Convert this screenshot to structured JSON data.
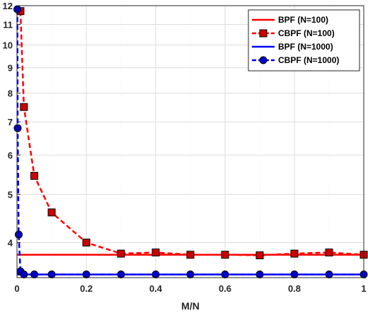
{
  "chart_data": {
    "type": "line",
    "title": "",
    "xlabel": "M/N",
    "ylabel": "",
    "xlim": [
      0,
      1
    ],
    "ylim": [
      3.4,
      12
    ],
    "yscale": "log",
    "grid": true,
    "legend_position": "top-right",
    "xticks": [
      "0",
      "0.2",
      "0.4",
      "0.6",
      "0.8",
      "1"
    ],
    "yticks": [
      "4",
      "5",
      "6",
      "7",
      "8",
      "9",
      "10",
      "11",
      "12"
    ],
    "series": [
      {
        "name": "BPF (N=100)",
        "color": "#ff0000",
        "line": "solid",
        "marker": "none",
        "x": [
          0,
          1
        ],
        "y": [
          3.78,
          3.78
        ]
      },
      {
        "name": "CBPF (N=100)",
        "color": "#ff0000",
        "marker_fill": "#cc0000",
        "line": "dashed",
        "marker": "square",
        "x": [
          0.01,
          0.02,
          0.05,
          0.1,
          0.2,
          0.3,
          0.4,
          0.5,
          0.6,
          0.7,
          0.8,
          0.9,
          1.0
        ],
        "y": [
          11.7,
          7.5,
          5.45,
          4.6,
          4.0,
          3.8,
          3.82,
          3.78,
          3.78,
          3.77,
          3.8,
          3.82,
          3.78
        ]
      },
      {
        "name": "BPF (N=1000)",
        "color": "#0000ff",
        "line": "solid",
        "marker": "none",
        "x": [
          0,
          1
        ],
        "y": [
          3.45,
          3.45
        ]
      },
      {
        "name": "CBPF (N=1000)",
        "color": "#0000ff",
        "marker_fill": "#0000cc",
        "line": "dashed",
        "marker": "circle",
        "x": [
          0.001,
          0.002,
          0.005,
          0.01,
          0.02,
          0.05,
          0.1,
          0.2,
          0.3,
          0.4,
          0.5,
          0.6,
          0.7,
          0.8,
          0.9,
          1.0
        ],
        "y": [
          11.8,
          6.8,
          4.15,
          3.5,
          3.45,
          3.45,
          3.45,
          3.45,
          3.45,
          3.45,
          3.45,
          3.45,
          3.45,
          3.45,
          3.45,
          3.45
        ]
      }
    ]
  }
}
